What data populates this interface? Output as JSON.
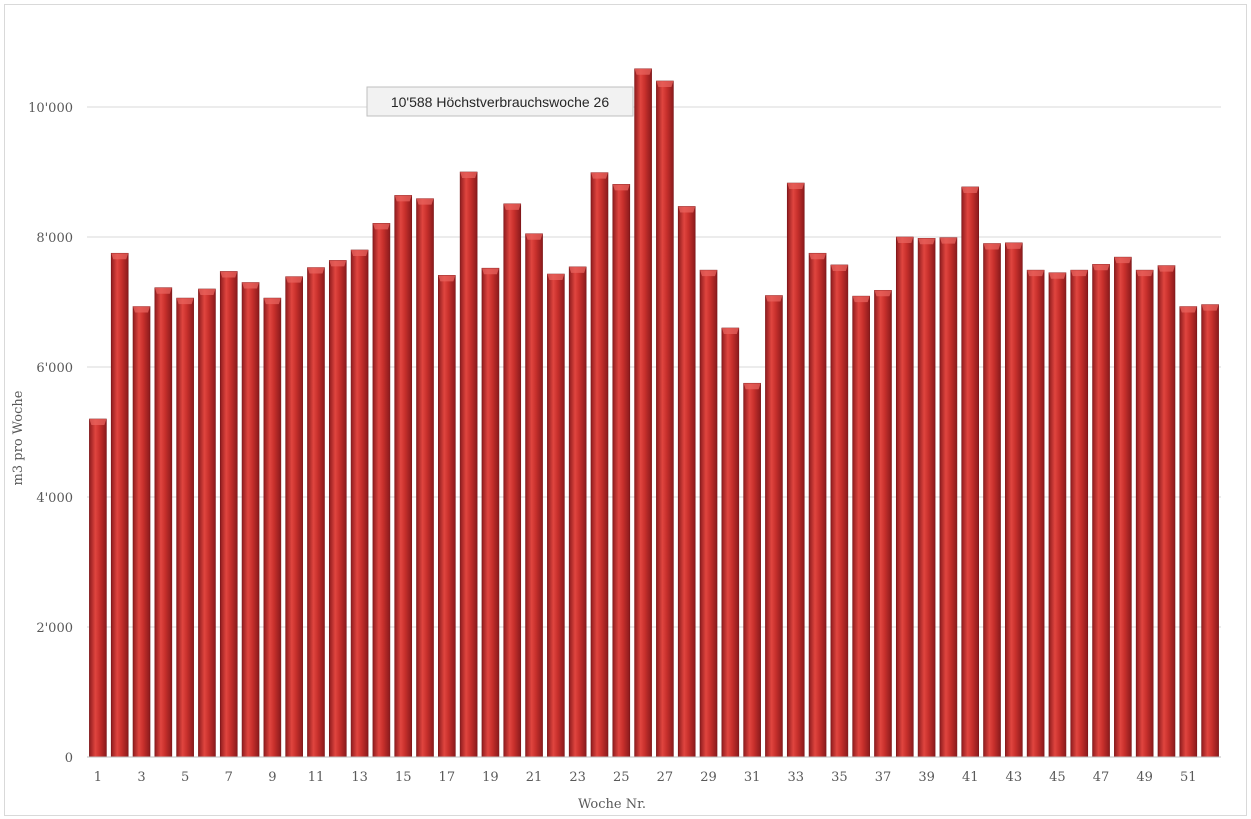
{
  "chart_data": {
    "type": "bar",
    "xlabel": "Woche Nr.",
    "ylabel": "m3 pro Woche",
    "ylim": [
      0,
      10800
    ],
    "yticks": [
      0,
      2000,
      4000,
      6000,
      8000,
      10000
    ],
    "ytick_labels": [
      "0",
      "2'000",
      "4'000",
      "6'000",
      "8'000",
      "10'000"
    ],
    "grid": true,
    "legend": "none",
    "bar_color": "#c0282a",
    "categories": [
      1,
      2,
      3,
      4,
      5,
      6,
      7,
      8,
      9,
      10,
      11,
      12,
      13,
      14,
      15,
      16,
      17,
      18,
      19,
      20,
      21,
      22,
      23,
      24,
      25,
      26,
      27,
      28,
      29,
      30,
      31,
      32,
      33,
      34,
      35,
      36,
      37,
      38,
      39,
      40,
      41,
      42,
      43,
      44,
      45,
      46,
      47,
      48,
      49,
      50,
      51,
      52
    ],
    "xtick_labels": [
      "1",
      "3",
      "5",
      "7",
      "9",
      "11",
      "13",
      "15",
      "17",
      "19",
      "21",
      "23",
      "25",
      "27",
      "29",
      "31",
      "33",
      "35",
      "37",
      "39",
      "41",
      "43",
      "45",
      "47",
      "49",
      "51"
    ],
    "values": [
      5200,
      7750,
      6930,
      7220,
      7060,
      7200,
      7470,
      7300,
      7060,
      7390,
      7530,
      7640,
      7800,
      8210,
      8640,
      8590,
      7410,
      9000,
      7520,
      8510,
      8050,
      7430,
      7540,
      8990,
      8810,
      10588,
      10400,
      8470,
      7490,
      6600,
      5750,
      7100,
      8830,
      7750,
      7570,
      7090,
      7180,
      8000,
      7980,
      7990,
      8770,
      7900,
      7910,
      7490,
      7450,
      7490,
      7580,
      7690,
      7490,
      7560,
      6930,
      6960
    ],
    "annotation": {
      "text": "10'588 Höchstverbrauchswoche 26",
      "week": 26
    }
  }
}
